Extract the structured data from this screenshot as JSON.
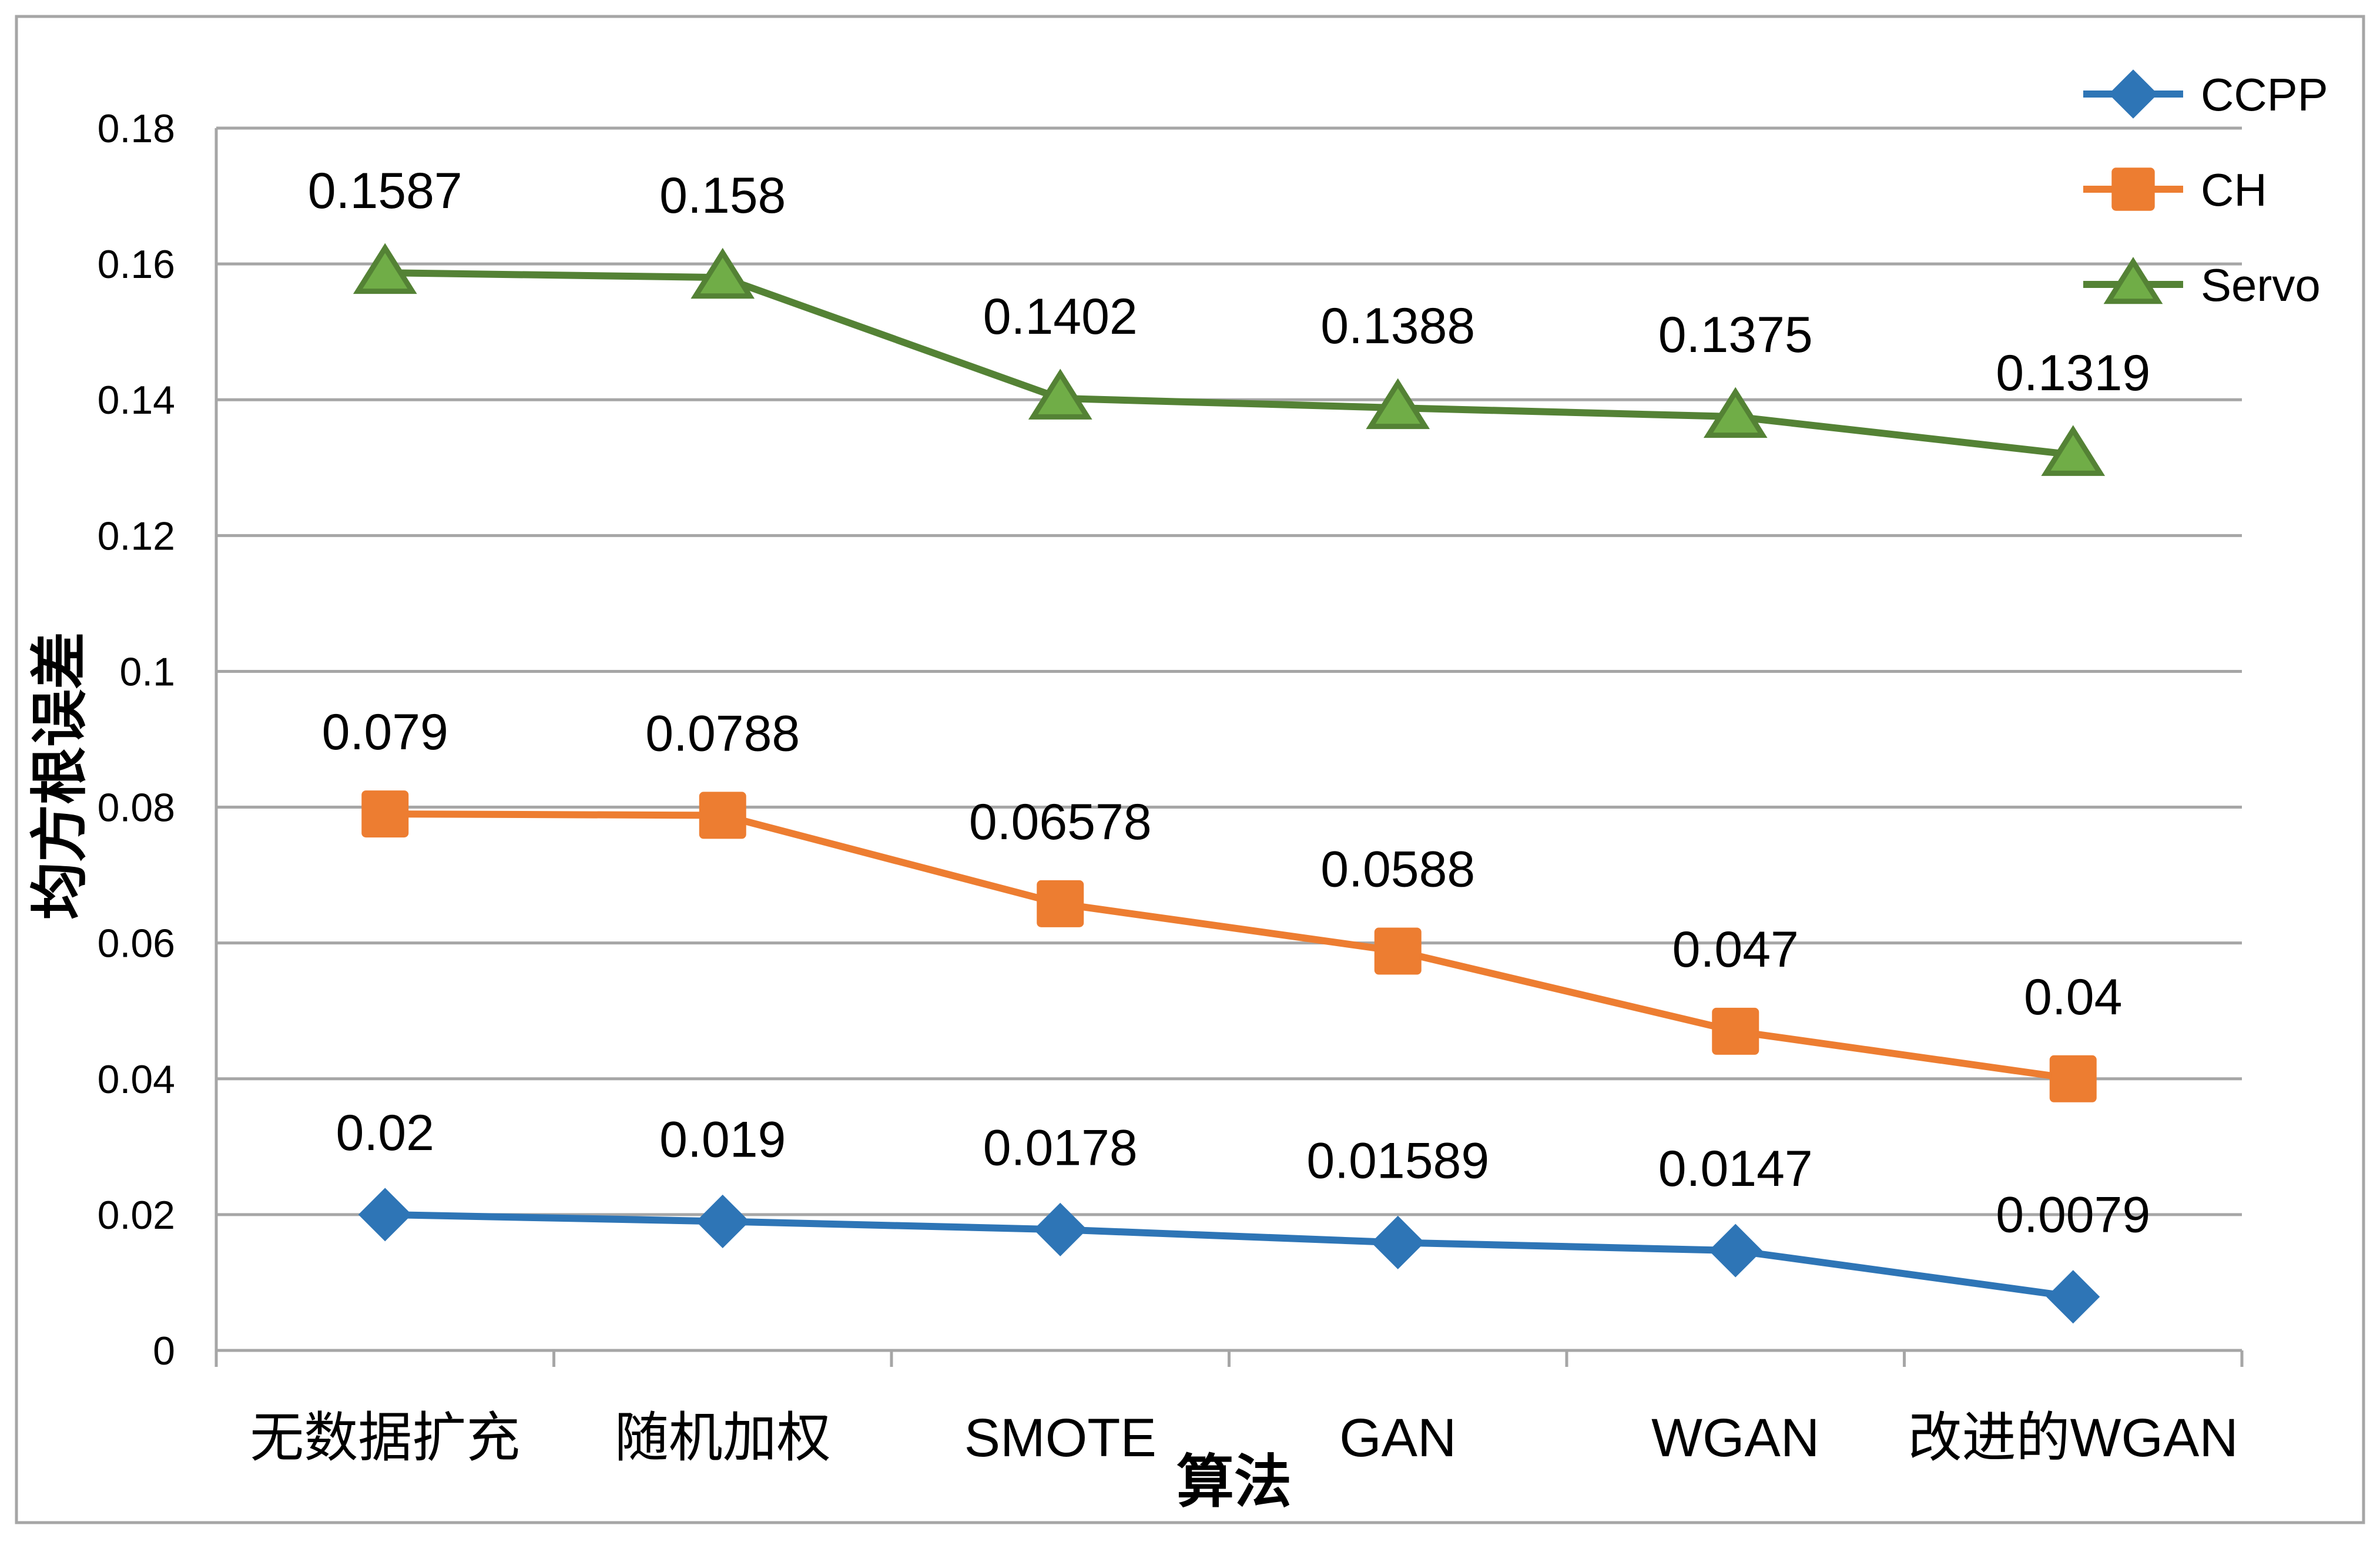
{
  "chart_data": {
    "type": "line",
    "title": "",
    "xlabel": "算法",
    "ylabel": "均方根误差",
    "categories": [
      "无数据扩充",
      "随机加权",
      "SMOTE",
      "GAN",
      "WGAN",
      "改进的WGAN"
    ],
    "ylim": [
      0,
      0.18
    ],
    "yticks": [
      "0",
      "0.02",
      "0.04",
      "0.06",
      "0.08",
      "0.1",
      "0.12",
      "0.14",
      "0.16",
      "0.18"
    ],
    "grid": true,
    "legend_position": "top-right",
    "series": [
      {
        "name": "CCPP",
        "color": "#2E75B6",
        "marker": "diamond",
        "values": [
          0.02,
          0.019,
          0.0178,
          0.01589,
          0.0147,
          0.0079
        ],
        "labels": [
          "0.02",
          "0.019",
          "0.0178",
          "0.01589",
          "0.0147",
          "0.0079"
        ]
      },
      {
        "name": "CH",
        "color": "#ED7D31",
        "marker": "square",
        "values": [
          0.079,
          0.0788,
          0.06578,
          0.0588,
          0.047,
          0.04
        ],
        "labels": [
          "0.079",
          "0.0788",
          "0.06578",
          "0.0588",
          "0.047",
          "0.04"
        ]
      },
      {
        "name": "Servo",
        "color": "#548235",
        "marker": "triangle",
        "values": [
          0.1587,
          0.158,
          0.1402,
          0.1388,
          0.1375,
          0.1319
        ],
        "labels": [
          "0.1587",
          "0.158",
          "0.1402",
          "0.1388",
          "0.1375",
          "0.1319"
        ]
      }
    ]
  }
}
